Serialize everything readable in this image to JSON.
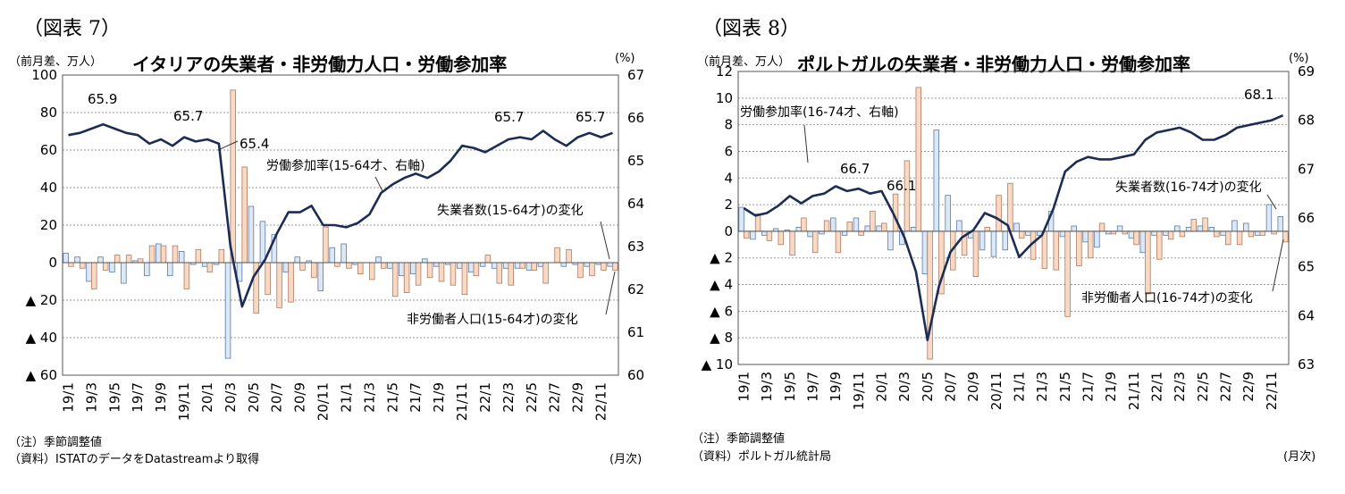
{
  "colors": {
    "employed_bar": "#dce8f5",
    "employed_edge": "#5a7aa6",
    "inactive_bar": "#f8d9c4",
    "inactive_edge": "#b07a60",
    "line": "#1c2c55",
    "grid": "#9a9a9a"
  },
  "panels": [
    {
      "figure_label": "（図表 7）",
      "title": "イタリアの失業者・非労働力人口・労働参加率",
      "left_unit": "（前月差、万人）",
      "right_unit": "(%)",
      "month_unit": "(月次)",
      "note": "（注）季節調整値",
      "source": "（資料）ISTATのデータをDatastreamより取得",
      "annotations": {
        "participation_label": "労働参加率(15-64才、右軸)",
        "employed_label": "失業者数(15-64才)の変化",
        "inactive_label": "非労働者人口(15-64才)の変化",
        "peak_a": "65.9",
        "peak_b": "65.7",
        "peak_c": "65.4",
        "peak_d": "65.7",
        "peak_e": "65.7"
      },
      "chart_data": {
        "type": "bar+line",
        "title": "イタリアの失業者・非労働力人口・労働参加率",
        "categories": [
          "19/1",
          "19/2",
          "19/3",
          "19/4",
          "19/5",
          "19/6",
          "19/7",
          "19/8",
          "19/9",
          "19/10",
          "19/11",
          "19/12",
          "20/1",
          "20/2",
          "20/3",
          "20/4",
          "20/5",
          "20/6",
          "20/7",
          "20/8",
          "20/9",
          "20/10",
          "20/11",
          "20/12",
          "21/1",
          "21/2",
          "21/3",
          "21/4",
          "21/5",
          "21/6",
          "21/7",
          "21/8",
          "21/9",
          "21/10",
          "21/11",
          "21/12",
          "22/1",
          "22/2",
          "22/3",
          "22/4",
          "22/5",
          "22/6",
          "22/7",
          "22/8",
          "22/9",
          "22/10",
          "22/11",
          "22/12"
        ],
        "tick_labels": [
          "19/1",
          "19/3",
          "19/5",
          "19/7",
          "19/9",
          "19/11",
          "20/1",
          "20/3",
          "20/5",
          "20/7",
          "20/9",
          "20/11",
          "21/1",
          "21/3",
          "21/5",
          "21/7",
          "21/9",
          "21/11",
          "22/1",
          "22/3",
          "22/5",
          "22/7",
          "22/9",
          "22/11"
        ],
        "y_left": {
          "range": [
            -60,
            100
          ],
          "ticks": [
            100,
            80,
            60,
            40,
            20,
            0,
            -20,
            -40,
            -60
          ],
          "tick_labels": [
            "100",
            "80",
            "60",
            "40",
            "20",
            "0",
            "▲ 20",
            "▲ 40",
            "▲ 60"
          ]
        },
        "y_right": {
          "range": [
            60,
            67
          ],
          "ticks": [
            67,
            66,
            65,
            64,
            63,
            62,
            61,
            60
          ],
          "tick_labels": [
            "67",
            "66",
            "65",
            "64",
            "63",
            "62",
            "61",
            "60"
          ]
        },
        "series": [
          {
            "name": "失業者数(15-64才)の変化",
            "type": "bar",
            "axis": "left",
            "values": [
              5,
              3,
              -10,
              3,
              -5,
              -11,
              1,
              -7,
              10,
              -7,
              6,
              -1,
              -2,
              -1,
              -51,
              -10,
              30,
              22,
              15,
              -5,
              3,
              1,
              -15,
              8,
              10,
              -1,
              0,
              3,
              -3,
              -7,
              -6,
              2,
              -2,
              -1,
              -3,
              -5,
              -2,
              -3,
              -3,
              -3,
              -4,
              -2,
              0,
              -2,
              -1,
              -2,
              -1,
              -2
            ]
          },
          {
            "name": "非労働者人口(15-64才)の変化",
            "type": "bar",
            "axis": "left",
            "values": [
              -2,
              -3,
              -14,
              -4,
              4,
              4,
              2,
              9,
              9,
              9,
              -14,
              7,
              -5,
              7,
              92,
              51,
              -27,
              -17,
              -24,
              -21,
              -4,
              -8,
              19,
              -2,
              -3,
              -6,
              -9,
              -3,
              -18,
              -16,
              -12,
              -8,
              -10,
              -12,
              -17,
              -7,
              4,
              -11,
              -12,
              -3,
              -4,
              -11,
              8,
              7,
              -8,
              -7,
              -4,
              -4
            ]
          },
          {
            "name": "労働参加率(15-64才、右軸)",
            "type": "line",
            "axis": "right",
            "values": [
              65.6,
              65.65,
              65.75,
              65.85,
              65.75,
              65.65,
              65.6,
              65.4,
              65.5,
              65.35,
              65.55,
              65.45,
              65.5,
              65.4,
              63.0,
              61.6,
              62.3,
              62.7,
              63.3,
              63.8,
              63.8,
              63.95,
              63.5,
              63.5,
              63.45,
              63.55,
              63.75,
              64.25,
              64.45,
              64.6,
              64.7,
              64.6,
              64.75,
              65.0,
              65.35,
              65.3,
              65.2,
              65.35,
              65.5,
              65.55,
              65.5,
              65.7,
              65.5,
              65.35,
              65.55,
              65.65,
              65.55,
              65.65
            ]
          }
        ]
      }
    },
    {
      "figure_label": "（図表 8）",
      "title": "ポルトガルの失業者・非労働力人口・労働参加率",
      "left_unit": "（前月差、万人）",
      "right_unit": "(%)",
      "month_unit": "(月次)",
      "note": "（注）季節調整値",
      "source": "（資料）ポルトガル統計局",
      "annotations": {
        "participation_label": "労働参加率(16-74才、右軸)",
        "employed_label": "失業者数(16-74才)の変化",
        "inactive_label": "非労働者人口(16-74才)の変化",
        "peak_a": "66.7",
        "peak_b": "66.1",
        "peak_c": "68.1"
      },
      "chart_data": {
        "type": "bar+line",
        "title": "ポルトガルの失業者・非労働力人口・労働参加率",
        "categories": [
          "19/1",
          "19/2",
          "19/3",
          "19/4",
          "19/5",
          "19/6",
          "19/7",
          "19/8",
          "19/9",
          "19/10",
          "19/11",
          "19/12",
          "20/1",
          "20/2",
          "20/3",
          "20/4",
          "20/5",
          "20/6",
          "20/7",
          "20/8",
          "20/9",
          "20/10",
          "20/11",
          "20/12",
          "21/1",
          "21/2",
          "21/3",
          "21/4",
          "21/5",
          "21/6",
          "21/7",
          "21/8",
          "21/9",
          "21/10",
          "21/11",
          "21/12",
          "22/1",
          "22/2",
          "22/3",
          "22/4",
          "22/5",
          "22/6",
          "22/7",
          "22/8",
          "22/9",
          "22/10",
          "22/11",
          "22/12"
        ],
        "tick_labels": [
          "19/1",
          "19/3",
          "19/5",
          "19/7",
          "19/9",
          "19/11",
          "20/1",
          "20/3",
          "20/5",
          "20/7",
          "20/9",
          "20/11",
          "21/1",
          "21/3",
          "21/5",
          "21/7",
          "21/9",
          "21/11",
          "22/1",
          "22/3",
          "22/5",
          "22/7",
          "22/9",
          "22/11"
        ],
        "y_left": {
          "range": [
            -10,
            12
          ],
          "ticks": [
            12,
            10,
            8,
            6,
            4,
            2,
            0,
            -2,
            -4,
            -6,
            -8,
            -10
          ],
          "tick_labels": [
            "12",
            "10",
            "8",
            "6",
            "4",
            "2",
            "0",
            "▲ 2",
            "▲ 4",
            "▲ 6",
            "▲ 8",
            "▲ 10"
          ]
        },
        "y_right": {
          "range": [
            63,
            69
          ],
          "ticks": [
            69,
            68,
            67,
            66,
            65,
            64,
            63
          ],
          "tick_labels": [
            "69",
            "68",
            "67",
            "66",
            "65",
            "64",
            "63"
          ]
        },
        "series": [
          {
            "name": "失業者数(16-74才)の変化",
            "type": "bar",
            "axis": "left",
            "values": [
              1.8,
              -0.6,
              -0.3,
              0.2,
              0.1,
              0.3,
              -0.4,
              -0.2,
              1.0,
              -0.3,
              1.0,
              0.4,
              0.4,
              -1.4,
              -1.0,
              0.3,
              -3.2,
              7.6,
              2.7,
              0.8,
              -0.5,
              -1.4,
              -1.9,
              -1.4,
              0.6,
              -0.3,
              -0.3,
              1.5,
              -0.4,
              0.4,
              -0.8,
              -1.2,
              -0.2,
              0.4,
              -0.5,
              -1.6,
              -0.3,
              -0.3,
              0.4,
              0.3,
              0.4,
              0.3,
              -0.3,
              0.8,
              0.6,
              -0.3,
              2.0,
              1.1
            ]
          },
          {
            "name": "非労働者人口(16-74才)の変化",
            "type": "bar",
            "axis": "left",
            "values": [
              -0.5,
              1.3,
              -0.7,
              -1.0,
              -1.8,
              1.0,
              -1.6,
              0.8,
              -1.6,
              0.7,
              -0.3,
              1.5,
              0.6,
              2.8,
              5.3,
              10.8,
              -9.6,
              -4.7,
              -2.9,
              -1.8,
              -3.4,
              0.3,
              2.7,
              3.6,
              -0.5,
              -2.1,
              -2.8,
              -2.9,
              -6.4,
              -2.6,
              -2.0,
              0.6,
              -0.2,
              -0.2,
              -1.0,
              -4.7,
              -2.1,
              -0.6,
              -0.4,
              0.9,
              1.0,
              -0.4,
              -1.0,
              -1.0,
              -0.4,
              -0.3,
              -0.2,
              -0.8
            ]
          },
          {
            "name": "労働参加率(16-74才、右軸)",
            "type": "line",
            "axis": "right",
            "values": [
              66.2,
              66.05,
              66.1,
              66.25,
              66.45,
              66.3,
              66.45,
              66.5,
              66.65,
              66.55,
              66.6,
              66.5,
              66.55,
              66.1,
              65.6,
              64.9,
              63.5,
              64.6,
              65.3,
              65.6,
              65.75,
              66.1,
              66.0,
              65.85,
              65.2,
              65.45,
              65.65,
              66.2,
              66.95,
              67.15,
              67.25,
              67.2,
              67.2,
              67.25,
              67.3,
              67.6,
              67.75,
              67.8,
              67.85,
              67.75,
              67.6,
              67.6,
              67.7,
              67.85,
              67.9,
              67.95,
              68.0,
              68.1
            ]
          }
        ]
      }
    }
  ]
}
